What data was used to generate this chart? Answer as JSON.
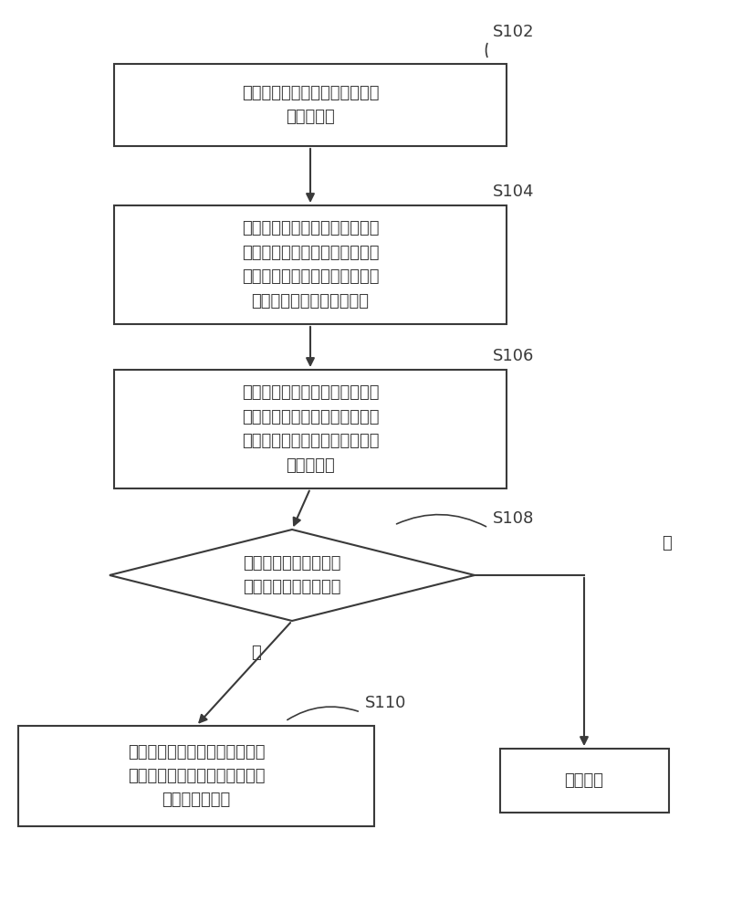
{
  "bg_color": "#ffffff",
  "box_color": "#ffffff",
  "box_edge_color": "#3a3a3a",
  "arrow_color": "#3a3a3a",
  "text_color": "#3a3a3a",
  "font_size": 13,
  "label_font_size": 13,
  "s102_text": "获取图像帧，从所述图像帧中的\n提取出图层",
  "s104_text": "获取图层的对比度和深度值，根\n据所述对比度和深度值计算所述\n图层的视觉敏感度，获取视觉敏\n感度最大的最大敏感度图层",
  "s106_text": "将提取出的图层按照其各自对应\n的深度值的大小进行排序生成图\n层序列，并计算所述图层的深度\n值的平均值",
  "s108_text": "判断最大敏感度图层的\n深度值是否小于平均值",
  "s110_text": "根据最大敏感度图层在所述图层\n序列中相邻的图层的深度值调整\n该图层的深度值",
  "no_adj_text": "不做调整",
  "yes_label": "是",
  "no_label": "否",
  "s102_label": "S102",
  "s104_label": "S104",
  "s106_label": "S106",
  "s108_label": "S108",
  "s110_label": "S110"
}
